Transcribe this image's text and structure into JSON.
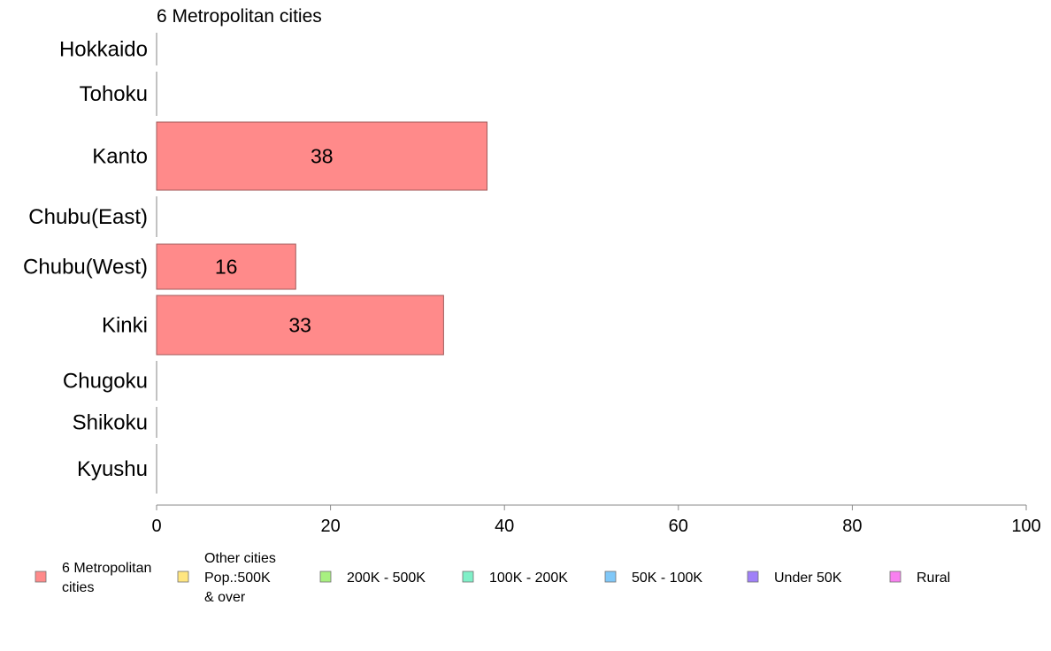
{
  "chart_data": {
    "type": "bar",
    "orientation": "horizontal",
    "title": "6 Metropolitan cities",
    "categories": [
      "Hokkaido",
      "Tohoku",
      "Kanto",
      "Chubu(East)",
      "Chubu(West)",
      "Kinki",
      "Chugoku",
      "Shikoku",
      "Kyushu"
    ],
    "series": [
      {
        "name": "6 Metropolitan cities",
        "values": [
          0,
          0,
          38,
          0,
          16,
          33,
          0,
          0,
          0
        ],
        "color": "#ff8a8a"
      }
    ],
    "data_labels": [
      null,
      null,
      "38",
      null,
      "16",
      "33",
      null,
      null,
      null
    ],
    "xlim": [
      0,
      100
    ],
    "xticks": [
      "0",
      "20",
      "40",
      "60",
      "80",
      "100"
    ],
    "grid": false,
    "legend_position": "bottom",
    "legend": [
      {
        "lines": [
          "6 Metropolitan",
          " cities"
        ],
        "color": "#ff8a8a"
      },
      {
        "lines": [
          "Other cities",
          "Pop.:500K",
          " & over"
        ],
        "color": "#ffe680"
      },
      {
        "lines": [
          "200K - 500K"
        ],
        "color": "#a8f080"
      },
      {
        "lines": [
          "100K - 200K"
        ],
        "color": "#80f0c8"
      },
      {
        "lines": [
          "50K - 100K"
        ],
        "color": "#80c8f8"
      },
      {
        "lines": [
          "Under 50K"
        ],
        "color": "#a080f8"
      },
      {
        "lines": [
          "Rural"
        ],
        "color": "#f880f0"
      }
    ]
  }
}
